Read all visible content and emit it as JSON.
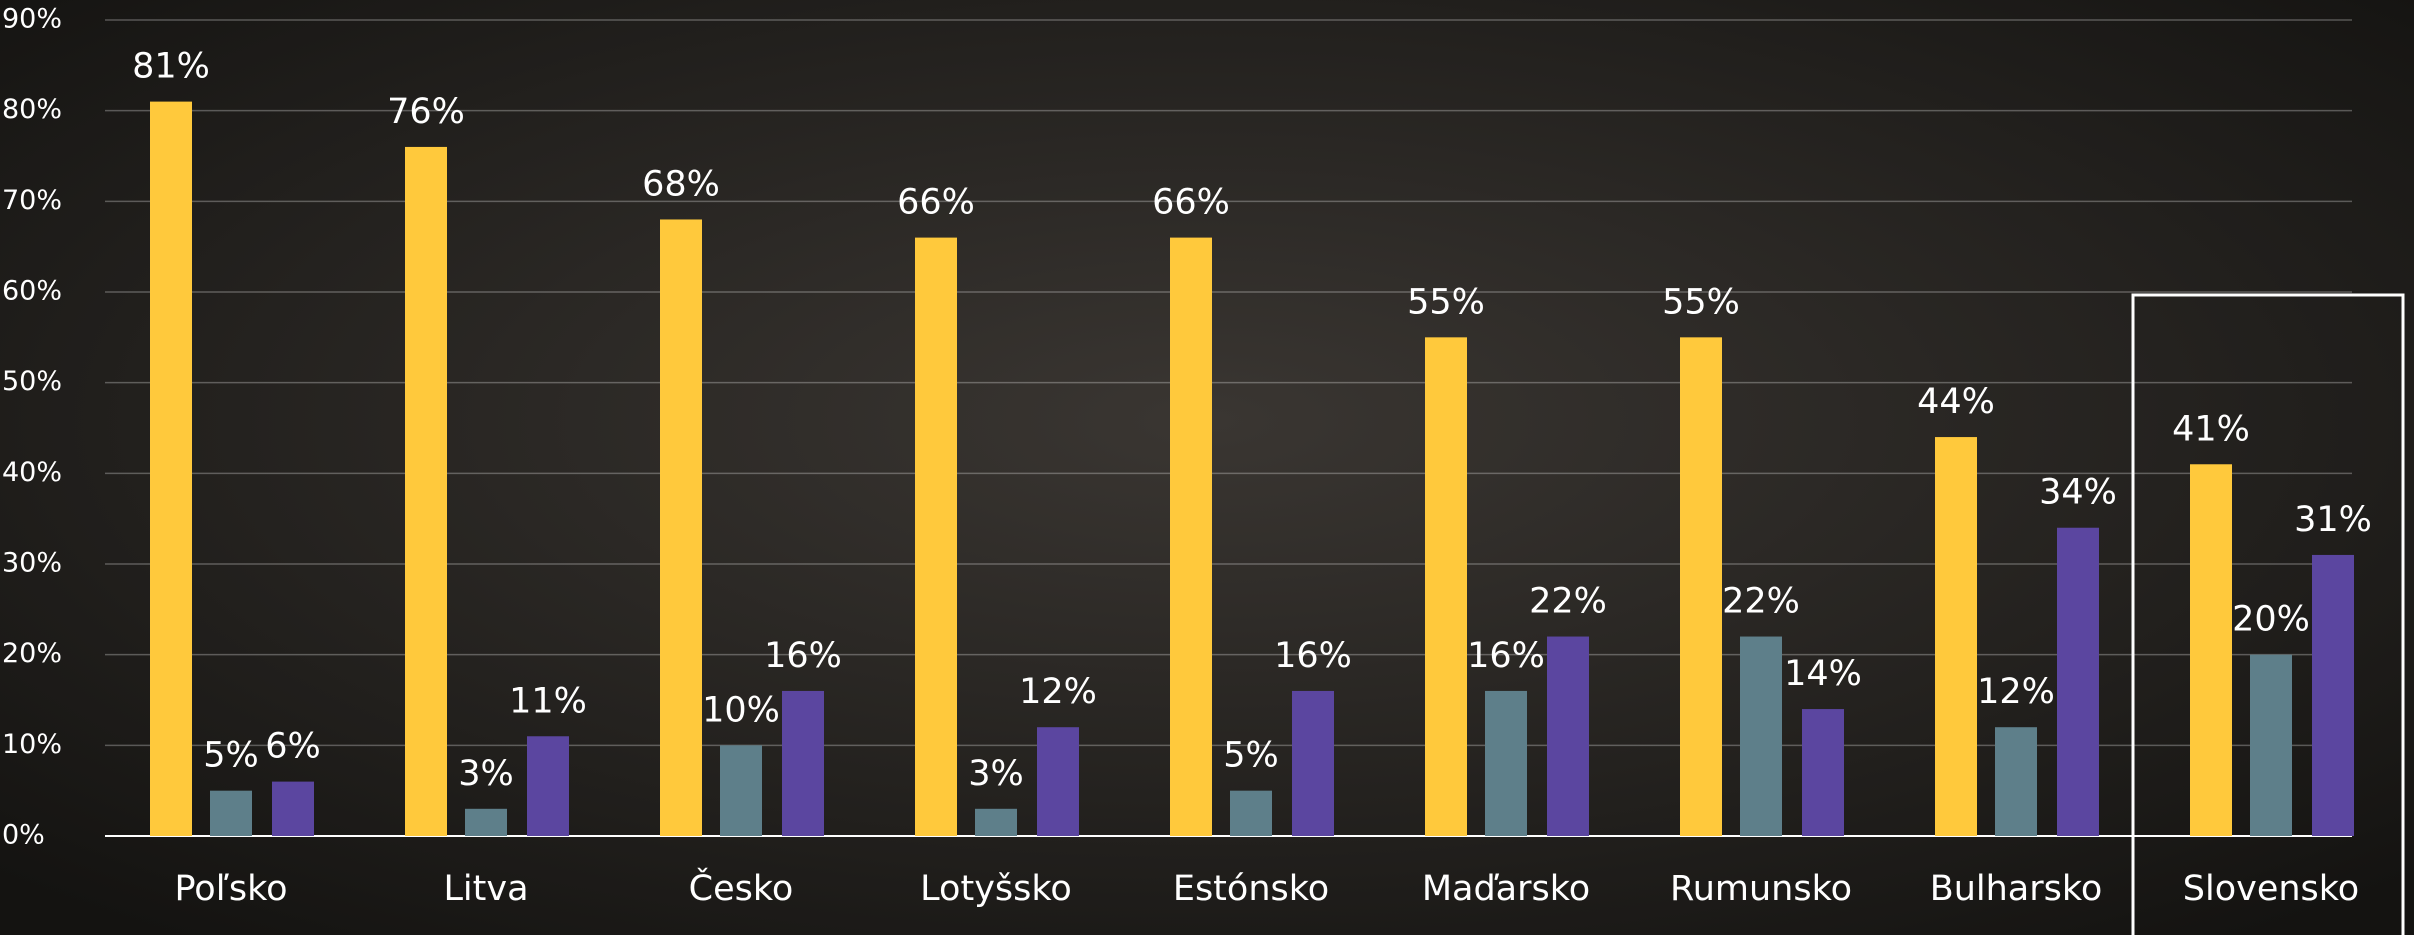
{
  "chart_data": {
    "type": "bar",
    "categories": [
      "Poľsko",
      "Litva",
      "Česko",
      "Lotyšsko",
      "Estónsko",
      "Maďarsko",
      "Rumunsko",
      "Bulharsko",
      "Slovensko"
    ],
    "series": [
      {
        "color": "#ffc93c",
        "values": [
          81,
          76,
          68,
          66,
          66,
          55,
          55,
          44,
          41
        ],
        "value_labels": [
          "81%",
          "76%",
          "68%",
          "66%",
          "66%",
          "55%",
          "55%",
          "44%",
          "41%"
        ]
      },
      {
        "color": "#5e7f8a",
        "values": [
          5,
          3,
          10,
          3,
          5,
          16,
          22,
          12,
          20
        ],
        "value_labels": [
          "5%",
          "3%",
          "10%",
          "3%",
          "5%",
          "16%",
          "22%",
          "12%",
          "20%"
        ]
      },
      {
        "color": "#5b46a0",
        "values": [
          6,
          11,
          16,
          12,
          16,
          22,
          14,
          34,
          31
        ],
        "value_labels": [
          "6%",
          "11%",
          "16%",
          "12%",
          "16%",
          "22%",
          "14%",
          "34%",
          "31%"
        ]
      }
    ],
    "ylim": [
      0,
      90
    ],
    "yticks": [
      {
        "value": 0,
        "label": "0%"
      },
      {
        "value": 10,
        "label": "10%"
      },
      {
        "value": 20,
        "label": "20%"
      },
      {
        "value": 30,
        "label": "30%"
      },
      {
        "value": 40,
        "label": "40%"
      },
      {
        "value": 50,
        "label": "50%"
      },
      {
        "value": 60,
        "label": "60%"
      },
      {
        "value": 70,
        "label": "70%"
      },
      {
        "value": 80,
        "label": "80%"
      },
      {
        "value": 90,
        "label": "90%"
      }
    ],
    "grid": true
  }
}
